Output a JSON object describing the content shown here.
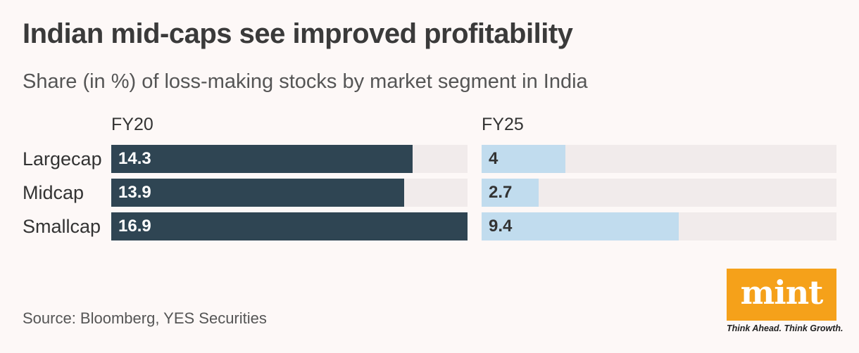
{
  "header": {
    "title": "Indian mid-caps see improved profitability",
    "subtitle": "Share (in %) of loss-making stocks by market segment in India"
  },
  "chart_data": {
    "type": "bar",
    "orientation": "horizontal",
    "title": "Indian mid-caps see improved profitability",
    "subtitle": "Share (in %) of loss-making stocks by market segment in India",
    "categories": [
      "Largecap",
      "Midcap",
      "Smallcap"
    ],
    "series": [
      {
        "name": "FY20",
        "values": [
          14.3,
          13.9,
          16.9
        ],
        "value_labels": [
          "14.3",
          "13.9",
          "16.9"
        ],
        "color": "#2f4553"
      },
      {
        "name": "FY25",
        "values": [
          4,
          2.7,
          9.4
        ],
        "value_labels": [
          "4",
          "2.7",
          "9.4"
        ],
        "color": "#c1dcee"
      }
    ],
    "xlim": [
      0,
      16.9
    ],
    "track_color": "#f1ebeb",
    "grid": false,
    "legend": "panel-headers"
  },
  "footer": {
    "source": "Source: Bloomberg, YES Securities",
    "logo_text": "mint",
    "tagline": "Think Ahead. Think Growth.",
    "logo_color": "#f5a11a"
  }
}
